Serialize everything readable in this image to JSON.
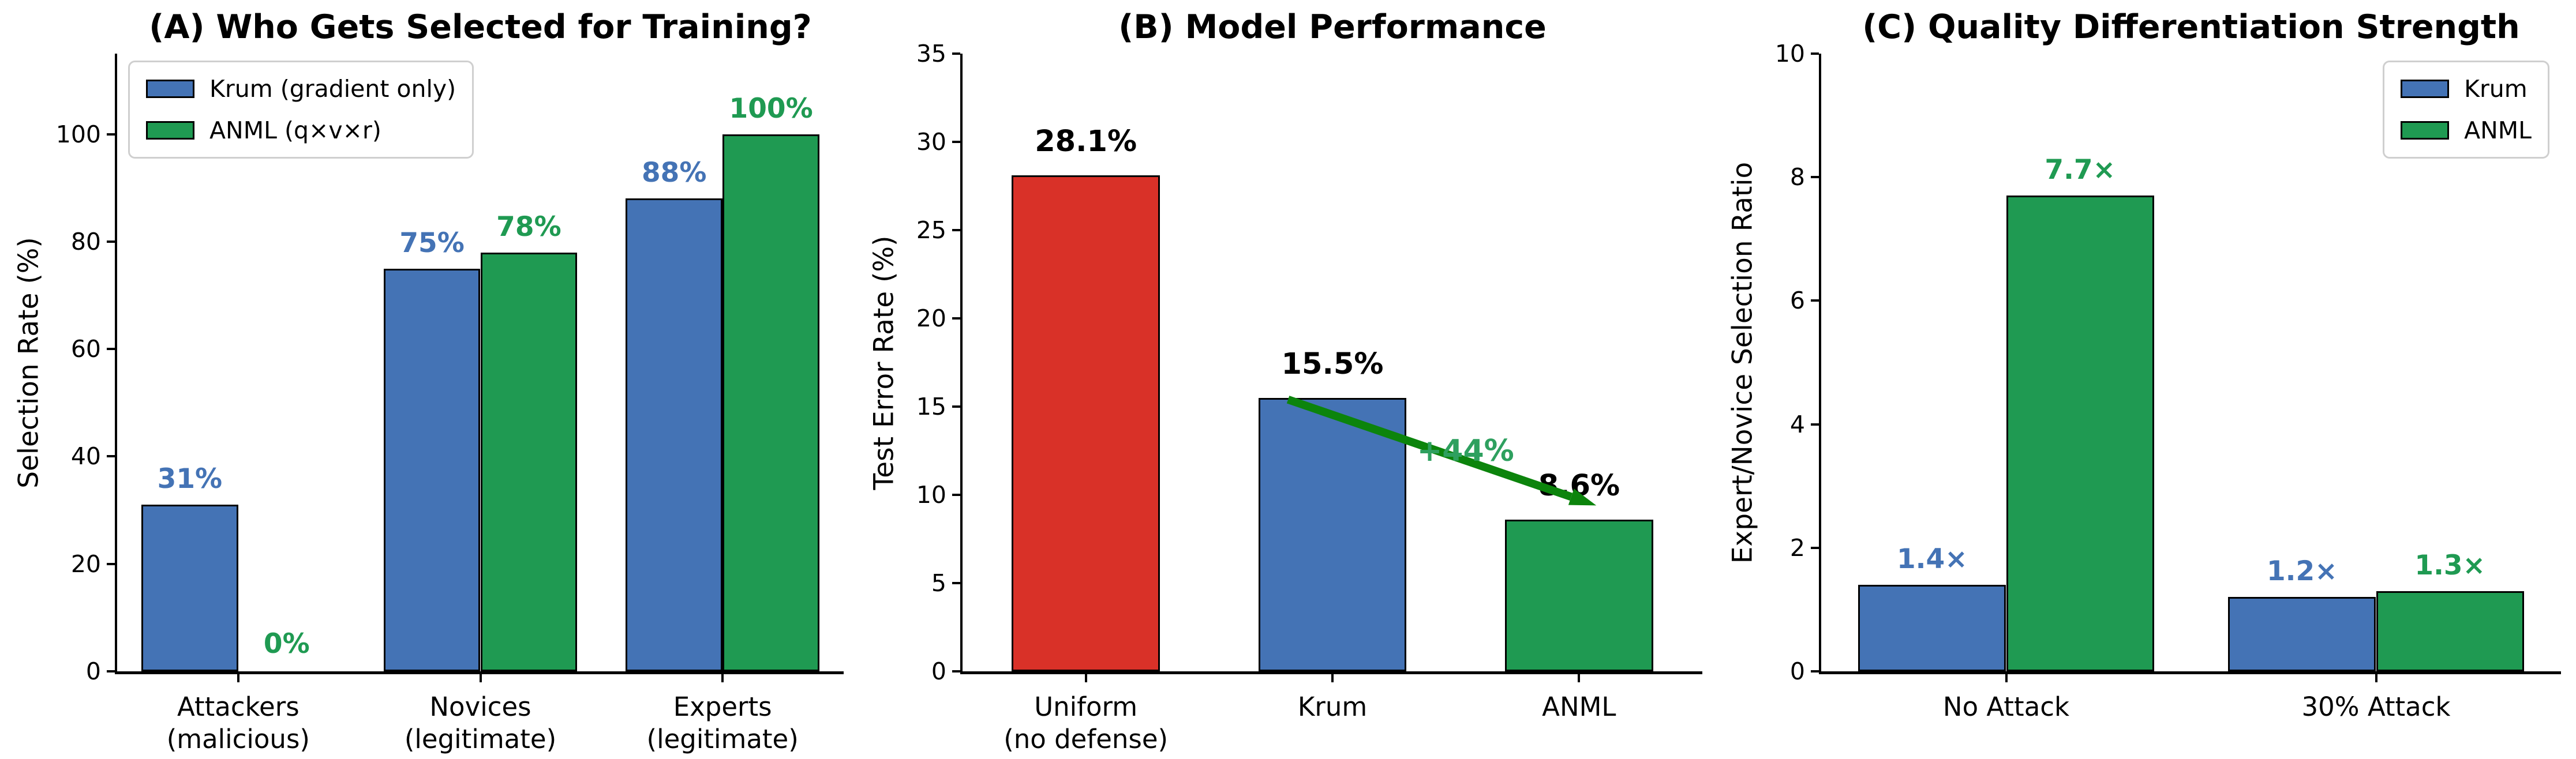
{
  "colors": {
    "krum_blue": "#4473b5",
    "anml_green": "#1f9a52",
    "uniform_red": "#d93128",
    "arrow_green": "#0c840c",
    "annotation_green": "#2ea05f",
    "axis_black": "#000000",
    "legend_border_gray": "#cfcfcf"
  },
  "chart_data": [
    {
      "id": "A",
      "type": "bar",
      "title": "(A) Who Gets Selected for Training?",
      "xlabel": "",
      "ylabel": "Selection Rate (%)",
      "ylim": [
        0,
        115
      ],
      "yticks": [
        0,
        20,
        40,
        60,
        80,
        100
      ],
      "grid": false,
      "categories": [
        "Attackers\n(malicious)",
        "Novices\n(legitimate)",
        "Experts\n(legitimate)"
      ],
      "series": [
        {
          "name": "Krum (gradient only)",
          "color_key": "krum_blue",
          "values": [
            31,
            75,
            88
          ],
          "labels": [
            "31%",
            "75%",
            "88%"
          ]
        },
        {
          "name": "ANML (q×v×r)",
          "color_key": "anml_green",
          "values": [
            0,
            78,
            100
          ],
          "labels": [
            "0%",
            "78%",
            "100%"
          ]
        }
      ],
      "legend": {
        "position": "upper-left",
        "entries": [
          {
            "label": "Krum (gradient only)",
            "color_key": "krum_blue"
          },
          {
            "label": "ANML (q×v×r)",
            "color_key": "anml_green"
          }
        ]
      }
    },
    {
      "id": "B",
      "type": "bar",
      "title": "(B) Model Performance",
      "xlabel": "",
      "ylabel": "Test Error Rate (%)",
      "ylim": [
        0,
        35
      ],
      "yticks": [
        0,
        5,
        10,
        15,
        20,
        25,
        30,
        35
      ],
      "grid": false,
      "categories": [
        "Uniform\n(no defense)",
        "Krum",
        "ANML"
      ],
      "series": [
        {
          "name": "Test Error Rate",
          "color_keys": [
            "uniform_red",
            "krum_blue",
            "anml_green"
          ],
          "values": [
            28.1,
            15.5,
            8.6
          ],
          "labels": [
            "28.1%",
            "15.5%",
            "8.6%"
          ]
        }
      ],
      "annotation": {
        "text": "+44%",
        "color_key": "annotation_green",
        "arrow_color_key": "arrow_green",
        "from_xy": [
          0.82,
          15.4
        ],
        "to_xy": [
          2.07,
          9.4
        ],
        "label_xy": [
          1.54,
          12.5
        ]
      }
    },
    {
      "id": "C",
      "type": "bar",
      "title": "(C) Quality Differentiation Strength",
      "xlabel": "",
      "ylabel": "Expert/Novice Selection Ratio",
      "ylim": [
        0,
        10
      ],
      "yticks": [
        0,
        2,
        4,
        6,
        8,
        10
      ],
      "grid": false,
      "categories": [
        "No Attack",
        "30% Attack"
      ],
      "series": [
        {
          "name": "Krum",
          "color_key": "krum_blue",
          "values": [
            1.4,
            1.2
          ],
          "labels": [
            "1.4×",
            "1.2×"
          ]
        },
        {
          "name": "ANML",
          "color_key": "anml_green",
          "values": [
            7.7,
            1.3
          ],
          "labels": [
            "7.7×",
            "1.3×"
          ]
        }
      ],
      "legend": {
        "position": "upper-right",
        "entries": [
          {
            "label": "Krum",
            "color_key": "krum_blue"
          },
          {
            "label": "ANML",
            "color_key": "anml_green"
          }
        ]
      }
    }
  ]
}
